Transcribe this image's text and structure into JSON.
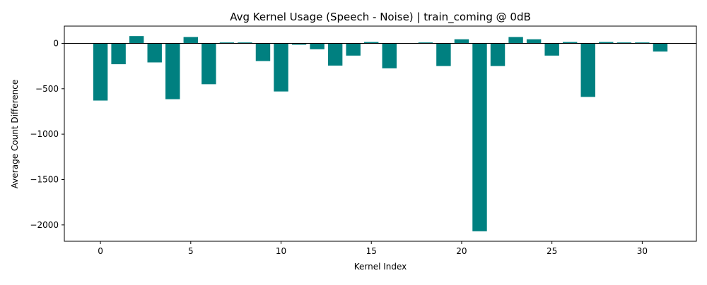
{
  "chart_data": {
    "type": "bar",
    "title": "Avg Kernel Usage (Speech - Noise) | train_coming @ 0dB",
    "xlabel": "Kernel Index",
    "ylabel": "Average Count Difference",
    "x": [
      0,
      1,
      2,
      3,
      4,
      5,
      6,
      7,
      8,
      9,
      10,
      11,
      12,
      13,
      14,
      15,
      16,
      17,
      18,
      19,
      20,
      21,
      22,
      23,
      24,
      25,
      26,
      27,
      28,
      29,
      30,
      31
    ],
    "values": [
      -630,
      -230,
      80,
      -210,
      -615,
      70,
      -450,
      10,
      10,
      -195,
      -530,
      -15,
      -65,
      -245,
      -135,
      15,
      -275,
      0,
      10,
      -250,
      45,
      -2070,
      -250,
      70,
      45,
      -135,
      15,
      -590,
      15,
      10,
      10,
      -90
    ],
    "xlim": [
      -2,
      33
    ],
    "ylim": [
      -2180,
      190
    ],
    "xticks": [
      0,
      5,
      10,
      15,
      20,
      25,
      30
    ],
    "yticks": [
      0,
      -500,
      -1000,
      -1500,
      -2000
    ],
    "ytick_labels": [
      "0",
      "−500",
      "−1000",
      "−1500",
      "−2000"
    ],
    "zero_line": true,
    "grid": false,
    "bar_color": "#008080"
  }
}
